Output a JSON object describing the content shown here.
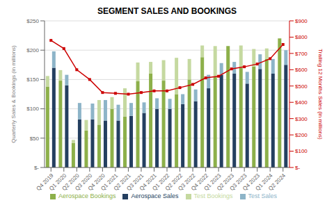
{
  "chart_data": {
    "type": "bar",
    "title": "SEGMENT SALES AND BOOKINGS",
    "ylabel": "Quarterly Sales & Bookings (in millions)",
    "y2label": "Trailing 12 Months Sales (in millions)",
    "categories": [
      "Q4 2019",
      "Q1 2020",
      "Q2 2020",
      "Q3 2020",
      "Q4 2020",
      "Q1 2021",
      "Q2 2021",
      "Q3 2021",
      "Q4 2021",
      "Q1 2022",
      "Q2 2022",
      "Q3 2022",
      "Q4 2022",
      "Q1 2023",
      "Q2 2023",
      "Q3 2023",
      "Q4 2023",
      "Q1 2024",
      "Q2 2024"
    ],
    "series": [
      {
        "name": "Aerospace Bookings",
        "color": "#8db04a",
        "values": [
          138,
          148,
          42,
          63,
          73,
          100,
          87,
          147,
          160,
          148,
          125,
          150,
          188,
          155,
          207,
          170,
          172,
          185,
          220
        ]
      },
      {
        "name": "Test Bookings",
        "color": "#c5d9a0",
        "values": [
          18,
          18,
          5,
          18,
          42,
          20,
          48,
          32,
          20,
          35,
          62,
          35,
          20,
          52,
          0,
          38,
          30,
          18,
          0
        ]
      },
      {
        "name": "Aerospace Sales",
        "color": "#243f60",
        "values": [
          170,
          140,
          82,
          82,
          80,
          80,
          88,
          93,
          100,
          100,
          108,
          113,
          135,
          158,
          160,
          143,
          168,
          160,
          175
        ]
      },
      {
        "name": "Test Sales",
        "color": "#8db4c8",
        "values": [
          28,
          18,
          28,
          27,
          35,
          27,
          22,
          18,
          18,
          17,
          17,
          20,
          23,
          20,
          20,
          20,
          25,
          25,
          25
        ]
      },
      {
        "type": "line",
        "axis": "y2",
        "color": "#cc0000",
        "marker": "square",
        "values": [
          780,
          730,
          600,
          540,
          460,
          455,
          450,
          460,
          470,
          470,
          490,
          510,
          550,
          560,
          605,
          618,
          635,
          668,
          755
        ]
      }
    ],
    "stacked": [
      [
        "Aerospace Bookings",
        "Test Bookings"
      ],
      [
        "Aerospace Sales",
        "Test Sales"
      ]
    ],
    "ylim": [
      0,
      250
    ],
    "yticks": [
      {
        "value": 0,
        "label": "$-"
      },
      {
        "value": 50,
        "label": "$50"
      },
      {
        "value": 100,
        "label": "$100"
      },
      {
        "value": 150,
        "label": "$150"
      },
      {
        "value": 200,
        "label": "$200"
      },
      {
        "value": 250,
        "label": "$250"
      }
    ],
    "y2lim": [
      0,
      900
    ],
    "y2ticks": [
      {
        "value": 0,
        "label": "$-"
      },
      {
        "value": 100,
        "label": "$100"
      },
      {
        "value": 200,
        "label": "$200"
      },
      {
        "value": 300,
        "label": "$300"
      },
      {
        "value": 400,
        "label": "$400"
      },
      {
        "value": 500,
        "label": "$500"
      },
      {
        "value": 600,
        "label": "$600"
      },
      {
        "value": 700,
        "label": "$700"
      },
      {
        "value": 800,
        "label": "$800"
      },
      {
        "value": 900,
        "label": "$900"
      }
    ],
    "grid": true,
    "legend": "bottom"
  }
}
